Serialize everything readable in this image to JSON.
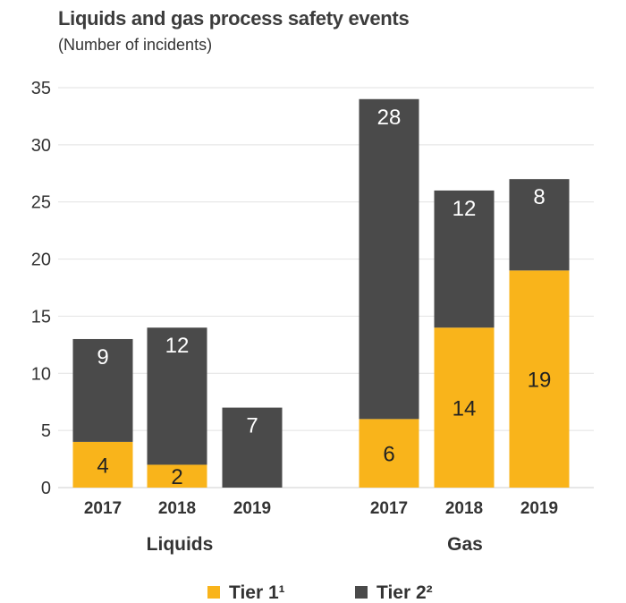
{
  "chart_data": {
    "type": "bar",
    "stacked": true,
    "title": "Liquids and gas process safety events",
    "subtitle": "(Number of incidents)",
    "ylim": [
      0,
      35
    ],
    "yticks": [
      0,
      5,
      10,
      15,
      20,
      25,
      30,
      35
    ],
    "groups": [
      {
        "name": "Liquids",
        "categories": [
          "2017",
          "2018",
          "2019"
        ]
      },
      {
        "name": "Gas",
        "categories": [
          "2017",
          "2018",
          "2019"
        ]
      }
    ],
    "series": [
      {
        "name": "Tier 1¹",
        "color": "#f9b41b",
        "label_color": "#222222",
        "values": [
          4,
          2,
          0,
          6,
          14,
          19
        ]
      },
      {
        "name": "Tier 2²",
        "color": "#4a4a4a",
        "label_color": "#ffffff",
        "values": [
          9,
          12,
          7,
          28,
          12,
          8
        ]
      }
    ],
    "grid": true,
    "legend": "bottom"
  }
}
